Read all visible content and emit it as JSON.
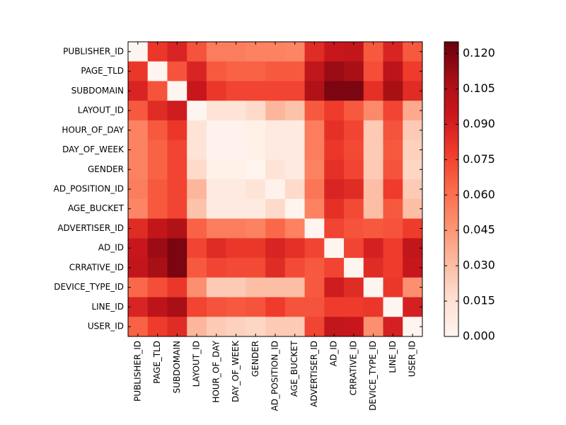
{
  "chart_data": {
    "type": "heatmap",
    "colormap": "Reds",
    "labels": [
      "PUBLISHER_ID",
      "PAGE_TLD",
      "SUBDOMAIN",
      "LAYOUT_ID",
      "HOUR_OF_DAY",
      "DAY_OF_WEEK",
      "GENDER",
      "AD_POSITION_ID",
      "AGE_BUCKET",
      "ADVERTISER_ID",
      "AD_ID",
      "CRRATIVE_ID",
      "DEVICE_TYPE_ID",
      "LINE_ID",
      "USER_ID"
    ],
    "values": [
      [
        0.0,
        0.08,
        0.088,
        0.07,
        0.055,
        0.055,
        0.053,
        0.053,
        0.052,
        0.085,
        0.095,
        0.097,
        0.068,
        0.088,
        0.068
      ],
      [
        0.08,
        0.0,
        0.07,
        0.088,
        0.068,
        0.065,
        0.065,
        0.068,
        0.068,
        0.098,
        0.112,
        0.108,
        0.072,
        0.1,
        0.078
      ],
      [
        0.088,
        0.07,
        0.0,
        0.095,
        0.08,
        0.075,
        0.075,
        0.075,
        0.075,
        0.105,
        0.12,
        0.12,
        0.083,
        0.108,
        0.085
      ],
      [
        0.068,
        0.085,
        0.092,
        0.0,
        0.013,
        0.013,
        0.018,
        0.033,
        0.028,
        0.068,
        0.078,
        0.068,
        0.05,
        0.075,
        0.038
      ],
      [
        0.053,
        0.068,
        0.08,
        0.013,
        0.002,
        0.002,
        0.004,
        0.008,
        0.008,
        0.055,
        0.083,
        0.075,
        0.025,
        0.07,
        0.025
      ],
      [
        0.053,
        0.065,
        0.075,
        0.013,
        0.002,
        0.002,
        0.004,
        0.008,
        0.008,
        0.055,
        0.08,
        0.073,
        0.025,
        0.068,
        0.022
      ],
      [
        0.053,
        0.065,
        0.075,
        0.018,
        0.004,
        0.004,
        0.001,
        0.013,
        0.008,
        0.053,
        0.083,
        0.075,
        0.025,
        0.07,
        0.02
      ],
      [
        0.055,
        0.068,
        0.075,
        0.033,
        0.008,
        0.008,
        0.013,
        0.002,
        0.018,
        0.058,
        0.088,
        0.085,
        0.03,
        0.078,
        0.025
      ],
      [
        0.052,
        0.068,
        0.075,
        0.028,
        0.008,
        0.008,
        0.008,
        0.018,
        0.001,
        0.053,
        0.083,
        0.073,
        0.03,
        0.068,
        0.03
      ],
      [
        0.085,
        0.097,
        0.105,
        0.065,
        0.055,
        0.055,
        0.053,
        0.063,
        0.053,
        0.0,
        0.075,
        0.07,
        0.068,
        0.07,
        0.078
      ],
      [
        0.095,
        0.112,
        0.12,
        0.075,
        0.085,
        0.08,
        0.08,
        0.088,
        0.083,
        0.075,
        0.0,
        0.075,
        0.09,
        0.078,
        0.098
      ],
      [
        0.097,
        0.108,
        0.12,
        0.068,
        0.075,
        0.073,
        0.073,
        0.085,
        0.073,
        0.068,
        0.075,
        0.0,
        0.085,
        0.078,
        0.095
      ],
      [
        0.063,
        0.072,
        0.08,
        0.048,
        0.025,
        0.025,
        0.03,
        0.03,
        0.03,
        0.068,
        0.092,
        0.085,
        0.0,
        0.08,
        0.048
      ],
      [
        0.088,
        0.1,
        0.108,
        0.075,
        0.07,
        0.068,
        0.07,
        0.078,
        0.07,
        0.07,
        0.078,
        0.078,
        0.08,
        0.0,
        0.09
      ],
      [
        0.065,
        0.078,
        0.085,
        0.033,
        0.025,
        0.022,
        0.02,
        0.025,
        0.025,
        0.075,
        0.098,
        0.095,
        0.048,
        0.09,
        0.0
      ]
    ],
    "colorbar": {
      "min": 0.0,
      "max": 0.125,
      "ticks": [
        "0.000",
        "0.015",
        "0.030",
        "0.045",
        "0.060",
        "0.075",
        "0.090",
        "0.105",
        "0.120"
      ]
    },
    "title": "",
    "xlabel": "",
    "ylabel": ""
  }
}
